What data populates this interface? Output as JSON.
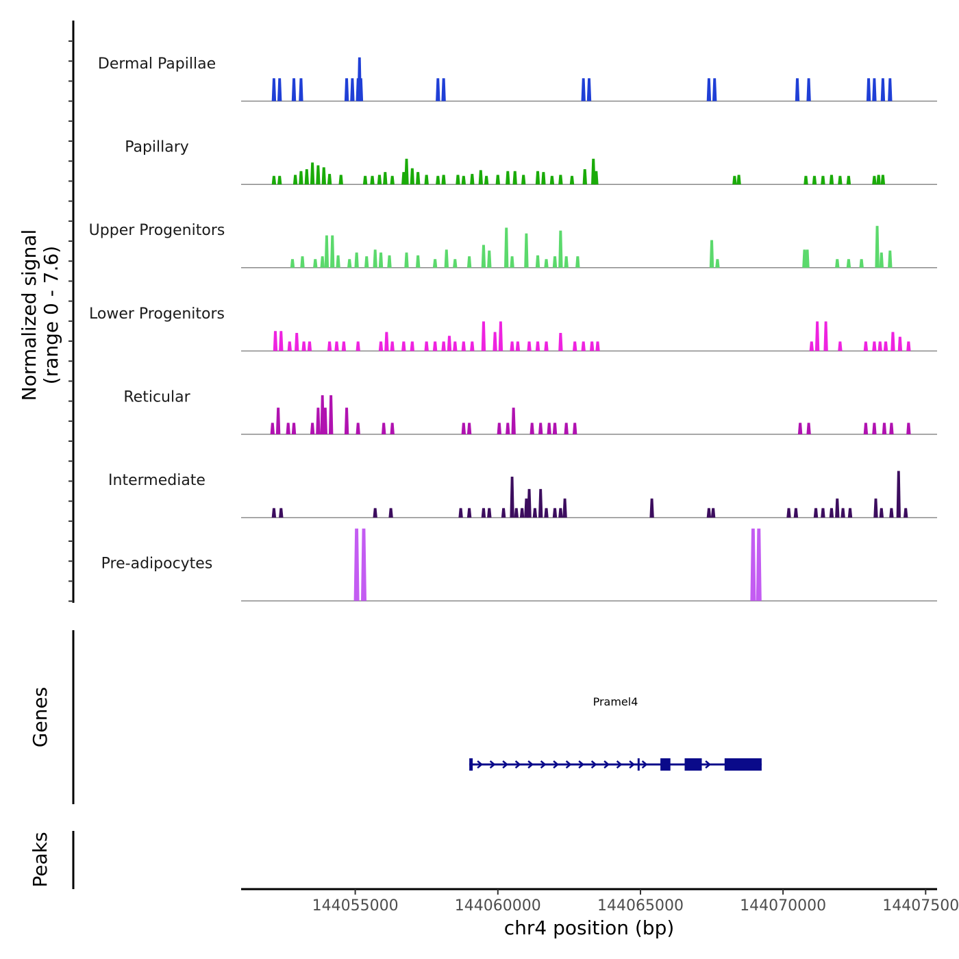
{
  "chart_data": {
    "type": "area",
    "title": "",
    "xlabel": "chr4 position (bp)",
    "ylabel": "Normalized signal\n(range 0 - 7.6)",
    "ylabel_lines": [
      "Normalized signal",
      "(range 0 - 7.6)"
    ],
    "ylim": [
      0,
      7.6
    ],
    "xlim": [
      144051000,
      144075400
    ],
    "x_ticks": [
      144055000,
      144060000,
      144065000,
      144070000,
      144075000
    ],
    "x_tick_labels": [
      "144055000",
      "144060000",
      "144065000",
      "144070000",
      "144075000"
    ],
    "grid": false,
    "legend": "none",
    "series": [
      {
        "name": "Dermal Papillae",
        "color": "#1f3fd6",
        "peaks": [
          [
            144052150,
            2.4
          ],
          [
            144052350,
            2.4
          ],
          [
            144052850,
            2.4
          ],
          [
            144053100,
            2.4
          ],
          [
            144054700,
            2.4
          ],
          [
            144054900,
            2.4
          ],
          [
            144055100,
            2.4
          ],
          [
            144055150,
            4.6
          ],
          [
            144055200,
            2.4
          ],
          [
            144057900,
            2.4
          ],
          [
            144058100,
            2.4
          ],
          [
            144063000,
            2.4
          ],
          [
            144063200,
            2.4
          ],
          [
            144067400,
            2.4
          ],
          [
            144067600,
            2.4
          ],
          [
            144070500,
            2.4
          ],
          [
            144070900,
            2.4
          ],
          [
            144073000,
            2.4
          ],
          [
            144073200,
            2.4
          ],
          [
            144073500,
            2.4
          ],
          [
            144073750,
            2.4
          ]
        ]
      },
      {
        "name": "Papillary",
        "color": "#1aab09",
        "peaks": [
          [
            144052150,
            0.9
          ],
          [
            144052350,
            0.9
          ],
          [
            144052900,
            1.0
          ],
          [
            144053100,
            1.4
          ],
          [
            144053300,
            1.6
          ],
          [
            144053500,
            2.3
          ],
          [
            144053700,
            2.0
          ],
          [
            144053900,
            1.8
          ],
          [
            144054100,
            1.1
          ],
          [
            144054500,
            1.0
          ],
          [
            144055350,
            0.9
          ],
          [
            144055600,
            0.9
          ],
          [
            144055850,
            1.0
          ],
          [
            144056050,
            1.3
          ],
          [
            144056300,
            0.9
          ],
          [
            144056700,
            1.3
          ],
          [
            144056800,
            2.7
          ],
          [
            144057000,
            1.7
          ],
          [
            144057200,
            1.3
          ],
          [
            144057500,
            1.0
          ],
          [
            144057900,
            0.9
          ],
          [
            144058100,
            1.0
          ],
          [
            144058600,
            1.0
          ],
          [
            144058800,
            0.9
          ],
          [
            144059100,
            1.1
          ],
          [
            144059400,
            1.5
          ],
          [
            144059600,
            0.9
          ],
          [
            144060000,
            1.0
          ],
          [
            144060350,
            1.4
          ],
          [
            144060600,
            1.4
          ],
          [
            144060900,
            1.0
          ],
          [
            144061400,
            1.4
          ],
          [
            144061600,
            1.3
          ],
          [
            144061900,
            0.9
          ],
          [
            144062200,
            1.0
          ],
          [
            144062600,
            0.9
          ],
          [
            144063050,
            1.6
          ],
          [
            144063350,
            2.7
          ],
          [
            144063450,
            1.4
          ],
          [
            144068300,
            0.9
          ],
          [
            144068450,
            1.0
          ],
          [
            144070800,
            0.9
          ],
          [
            144071100,
            0.9
          ],
          [
            144071400,
            0.9
          ],
          [
            144071700,
            1.0
          ],
          [
            144072000,
            0.9
          ],
          [
            144072300,
            0.9
          ],
          [
            144073200,
            0.9
          ],
          [
            144073350,
            1.0
          ],
          [
            144073500,
            1.0
          ]
        ]
      },
      {
        "name": "Upper Progenitors",
        "color": "#5bd96c",
        "peaks": [
          [
            144052800,
            0.9
          ],
          [
            144053150,
            1.2
          ],
          [
            144053600,
            0.9
          ],
          [
            144053850,
            1.2
          ],
          [
            144054000,
            3.4
          ],
          [
            144054200,
            3.4
          ],
          [
            144054400,
            1.3
          ],
          [
            144054800,
            0.9
          ],
          [
            144055050,
            1.6
          ],
          [
            144055400,
            1.2
          ],
          [
            144055700,
            1.9
          ],
          [
            144055900,
            1.6
          ],
          [
            144056200,
            1.3
          ],
          [
            144056800,
            1.6
          ],
          [
            144057200,
            1.3
          ],
          [
            144057800,
            0.9
          ],
          [
            144058200,
            1.9
          ],
          [
            144058500,
            0.9
          ],
          [
            144059000,
            1.2
          ],
          [
            144059500,
            2.4
          ],
          [
            144059700,
            1.8
          ],
          [
            144060300,
            4.2
          ],
          [
            144060500,
            1.2
          ],
          [
            144061000,
            3.6
          ],
          [
            144061400,
            1.3
          ],
          [
            144061700,
            0.9
          ],
          [
            144062000,
            1.2
          ],
          [
            144062200,
            3.9
          ],
          [
            144062400,
            1.2
          ],
          [
            144062800,
            1.2
          ],
          [
            144067500,
            2.9
          ],
          [
            144067700,
            0.9
          ],
          [
            144070750,
            1.9
          ],
          [
            144070850,
            1.9
          ],
          [
            144071900,
            0.9
          ],
          [
            144072300,
            0.9
          ],
          [
            144072750,
            0.9
          ],
          [
            144073300,
            4.4
          ],
          [
            144073450,
            1.6
          ],
          [
            144073750,
            1.8
          ]
        ]
      },
      {
        "name": "Lower Progenitors",
        "color": "#ee23e0",
        "peaks": [
          [
            144052200,
            2.1
          ],
          [
            144052400,
            2.1
          ],
          [
            144052700,
            1.0
          ],
          [
            144052950,
            1.9
          ],
          [
            144053200,
            1.0
          ],
          [
            144053400,
            1.0
          ],
          [
            144054100,
            1.0
          ],
          [
            144054350,
            1.0
          ],
          [
            144054600,
            1.0
          ],
          [
            144055100,
            1.0
          ],
          [
            144055900,
            1.0
          ],
          [
            144056100,
            2.0
          ],
          [
            144056300,
            1.0
          ],
          [
            144056700,
            1.0
          ],
          [
            144057000,
            1.0
          ],
          [
            144057500,
            1.0
          ],
          [
            144057800,
            1.0
          ],
          [
            144058100,
            1.0
          ],
          [
            144058300,
            1.6
          ],
          [
            144058500,
            1.0
          ],
          [
            144058800,
            1.0
          ],
          [
            144059100,
            1.0
          ],
          [
            144059500,
            3.1
          ],
          [
            144059900,
            2.0
          ],
          [
            144060100,
            3.1
          ],
          [
            144060500,
            1.0
          ],
          [
            144060700,
            1.0
          ],
          [
            144061100,
            1.0
          ],
          [
            144061400,
            1.0
          ],
          [
            144061700,
            1.0
          ],
          [
            144062200,
            1.9
          ],
          [
            144062700,
            1.0
          ],
          [
            144063000,
            1.0
          ],
          [
            144063300,
            1.0
          ],
          [
            144063500,
            1.0
          ],
          [
            144071000,
            1.0
          ],
          [
            144071200,
            3.1
          ],
          [
            144071500,
            3.1
          ],
          [
            144072000,
            1.0
          ],
          [
            144072900,
            1.0
          ],
          [
            144073200,
            1.0
          ],
          [
            144073400,
            1.0
          ],
          [
            144073600,
            1.0
          ],
          [
            144073850,
            2.0
          ],
          [
            144074100,
            1.5
          ],
          [
            144074400,
            1.0
          ]
        ]
      },
      {
        "name": "Reticular",
        "color": "#b012b0",
        "peaks": [
          [
            144052100,
            1.2
          ],
          [
            144052300,
            2.8
          ],
          [
            144052650,
            1.2
          ],
          [
            144052850,
            1.2
          ],
          [
            144053500,
            1.2
          ],
          [
            144053700,
            2.8
          ],
          [
            144053850,
            4.1
          ],
          [
            144053950,
            2.8
          ],
          [
            144054150,
            4.1
          ],
          [
            144054700,
            2.8
          ],
          [
            144055100,
            1.2
          ],
          [
            144056000,
            1.2
          ],
          [
            144056300,
            1.2
          ],
          [
            144058800,
            1.2
          ],
          [
            144059000,
            1.2
          ],
          [
            144060050,
            1.2
          ],
          [
            144060350,
            1.2
          ],
          [
            144060550,
            2.8
          ],
          [
            144061200,
            1.2
          ],
          [
            144061500,
            1.2
          ],
          [
            144061800,
            1.2
          ],
          [
            144062000,
            1.2
          ],
          [
            144062400,
            1.2
          ],
          [
            144062700,
            1.2
          ],
          [
            144070600,
            1.2
          ],
          [
            144070900,
            1.2
          ],
          [
            144072900,
            1.2
          ],
          [
            144073200,
            1.2
          ],
          [
            144073550,
            1.2
          ],
          [
            144073800,
            1.2
          ],
          [
            144074400,
            1.2
          ]
        ]
      },
      {
        "name": "Intermediate",
        "color": "#3c0d5e",
        "peaks": [
          [
            144052150,
            1.0
          ],
          [
            144052400,
            1.0
          ],
          [
            144055700,
            1.0
          ],
          [
            144056250,
            1.0
          ],
          [
            144058700,
            1.0
          ],
          [
            144059000,
            1.0
          ],
          [
            144059500,
            1.0
          ],
          [
            144059700,
            1.0
          ],
          [
            144060200,
            1.0
          ],
          [
            144060500,
            4.3
          ],
          [
            144060650,
            1.0
          ],
          [
            144060850,
            1.0
          ],
          [
            144061000,
            2.0
          ],
          [
            144061100,
            3.0
          ],
          [
            144061300,
            1.0
          ],
          [
            144061500,
            3.0
          ],
          [
            144061700,
            1.0
          ],
          [
            144062000,
            1.0
          ],
          [
            144062200,
            1.0
          ],
          [
            144062350,
            2.0
          ],
          [
            144065400,
            2.0
          ],
          [
            144067400,
            1.0
          ],
          [
            144067550,
            1.0
          ],
          [
            144070200,
            1.0
          ],
          [
            144070450,
            1.0
          ],
          [
            144071150,
            1.0
          ],
          [
            144071400,
            1.0
          ],
          [
            144071700,
            1.0
          ],
          [
            144071900,
            2.0
          ],
          [
            144072100,
            1.0
          ],
          [
            144072350,
            1.0
          ],
          [
            144073250,
            2.0
          ],
          [
            144073450,
            1.0
          ],
          [
            144073800,
            1.0
          ],
          [
            144074050,
            4.9
          ],
          [
            144074300,
            1.0
          ]
        ]
      },
      {
        "name": "Pre-adipocytes",
        "color": "#c35cf2",
        "peaks": [
          [
            144055050,
            7.6
          ],
          [
            144055300,
            7.6
          ],
          [
            144068950,
            7.6
          ],
          [
            144069150,
            7.6
          ]
        ]
      }
    ],
    "genes_track": {
      "label": "Genes",
      "genes": [
        {
          "name": "Pramel4",
          "strand": "+",
          "color": "#0a0a8a",
          "start": 144059000,
          "end": 144069250,
          "exons": [
            [
              144059000,
              144059120
            ],
            [
              144064900,
              144064960
            ],
            [
              144065700,
              144066050
            ],
            [
              144066550,
              144067150
            ],
            [
              144067950,
              144069250
            ]
          ]
        }
      ]
    },
    "peaks_track": {
      "label": "Peaks",
      "peaks": []
    }
  }
}
